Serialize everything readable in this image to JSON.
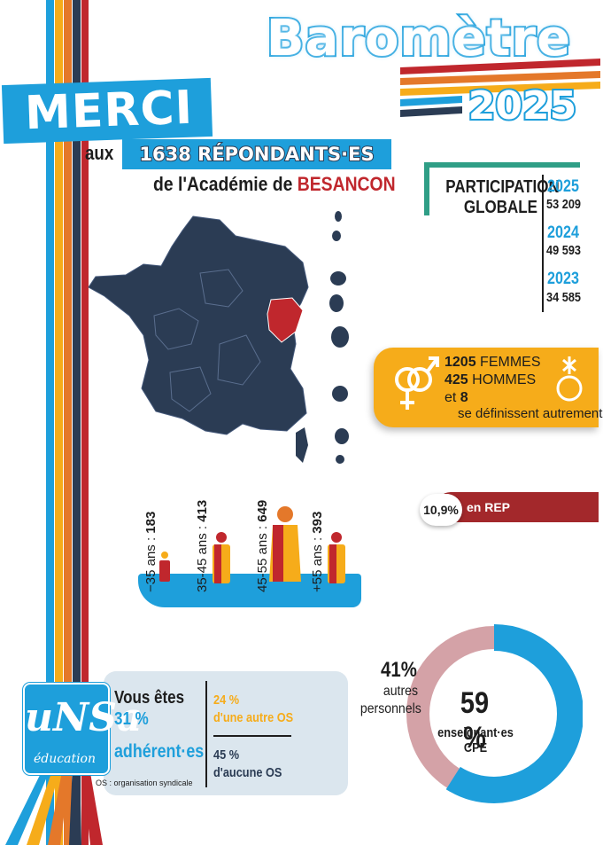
{
  "header": {
    "title": "Baromètre",
    "year": "2025"
  },
  "thanks": {
    "merci": "MERCI",
    "aux": "aux",
    "respondents": "1638 RÉPONDANTS·ES",
    "academie_prefix": "de l'Académie de",
    "academie_name": "BESANCON"
  },
  "participation": {
    "label": "PARTICIPATION GLOBALE",
    "years": [
      {
        "year": "2025",
        "value": "53 209"
      },
      {
        "year": "2024",
        "value": "49 593"
      },
      {
        "year": "2023",
        "value": "34 585"
      }
    ]
  },
  "gender": {
    "femmes_count": "1205",
    "femmes_label": "FEMMES",
    "hommes_count": "425",
    "hommes_label": "HOMMES",
    "autre_prefix": "et",
    "autre_count": "8",
    "autre_label": "se définissent autrement",
    "colors": {
      "box": "#f6ac1a"
    }
  },
  "rep": {
    "value": "10,9%",
    "label": "en REP"
  },
  "ages": [
    {
      "range": "−35 ans :",
      "count": "183"
    },
    {
      "range": "35-45 ans :",
      "count": "413"
    },
    {
      "range": "45-55 ans :",
      "count": "649"
    },
    {
      "range": "+55 ans :",
      "count": "393"
    }
  ],
  "unsa": {
    "logo_text": "uNSa",
    "logo_sub": "éducation",
    "vous": "Vous êtes",
    "pct": "31 %",
    "adherents": "adhérent·es",
    "autre_os_pct": "24 %",
    "autre_os_label": "d'une autre OS",
    "aucune_os_pct": "45 %",
    "aucune_os_label": "d'aucune OS",
    "note": "OS : organisation syndicale"
  },
  "staff": {
    "autres_pct": "41%",
    "autres_label_1": "autres",
    "autres_label_2": "personnels",
    "ens_pct": "59 %",
    "ens_label_1": "enseignant·es",
    "ens_label_2": "CPE",
    "ens_fraction": 0.59,
    "colors": {
      "ens": "#1e9fdb",
      "autres": "#d4a2a7"
    }
  },
  "colors": {
    "blue": "#1e9fdb",
    "navy": "#2b3c54",
    "red": "#c0272d",
    "orange": "#f6ac1a",
    "darkred": "#a3282b"
  }
}
